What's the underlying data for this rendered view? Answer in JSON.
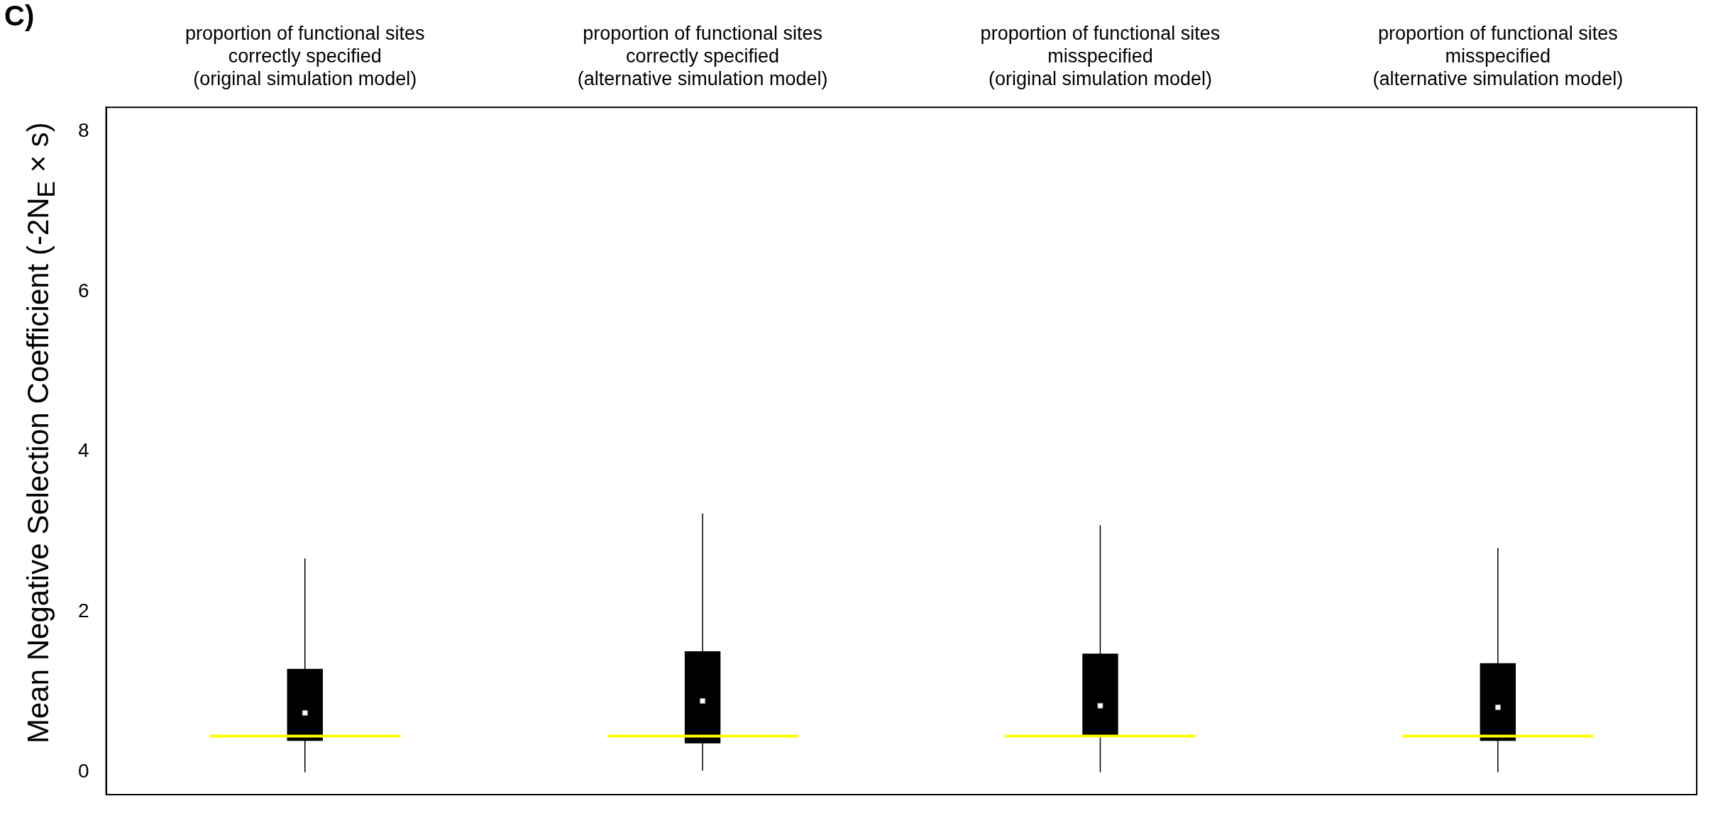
{
  "chart_data": {
    "type": "box",
    "categories": [
      "proportion of functional sites\ncorrectly specified\n(original simulation model)",
      "proportion of functional sites\ncorrectly specified\n(alternative simulation model)",
      "proportion of functional sites\nmisspecified\n(original simulation model)",
      "proportion of functional sites\nmisspecified\n(alternative simulation model)"
    ],
    "ylabel": "Mean Negative Selection Coefficient (-2N$_{E}$ × s)",
    "color": "#000000",
    "boxes": [
      {
        "low": 0,
        "q1": 0.39,
        "median": 0.74,
        "q3": 1.29,
        "high": 2.67
      },
      {
        "low": 0.02,
        "q1": 0.36,
        "median": 0.89,
        "q3": 1.51,
        "high": 3.23
      },
      {
        "low": 0,
        "q1": 0.44,
        "median": 0.83,
        "q3": 1.48,
        "high": 3.08
      },
      {
        "low": 0,
        "q1": 0.39,
        "median": 0.81,
        "q3": 1.36,
        "high": 2.8
      }
    ],
    "ylim": [
      -0.28,
      8.3
    ],
    "yticks": [
      0,
      2,
      4,
      6,
      8
    ],
    "ref_lines": [
      {
        "axis": "y",
        "value": 0.45,
        "color": "#ffff00"
      }
    ],
    "annotations": [
      "C)"
    ],
    "grid": false,
    "legend": false
  }
}
